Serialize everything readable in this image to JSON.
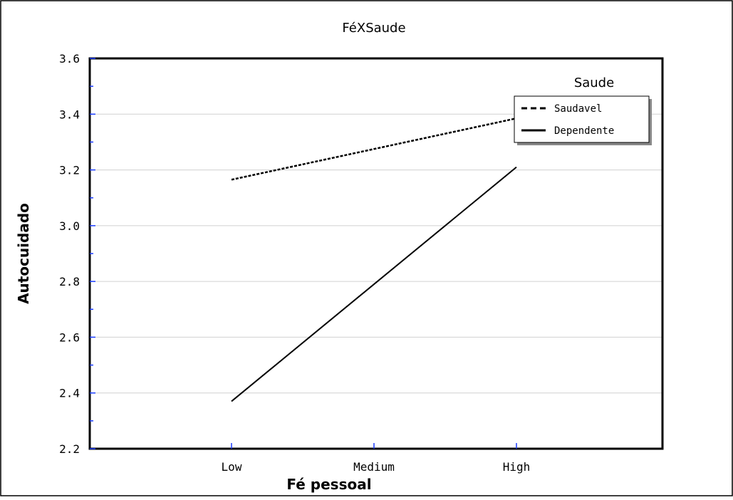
{
  "chart_data": {
    "type": "line",
    "title": "FéXSaude",
    "xlabel": "Fé pessoal",
    "ylabel": "Autocuidado",
    "categories": [
      "Low",
      "Medium",
      "High"
    ],
    "ylim": [
      2.2,
      3.6
    ],
    "yticks": [
      "2.2",
      "2.4",
      "2.6",
      "2.8",
      "3.0",
      "3.2",
      "3.4",
      "3.6"
    ],
    "grid": "horizontal",
    "legend": {
      "title": "Saude",
      "placement": "top-right"
    },
    "series": [
      {
        "name": "Saudavel",
        "line_style": "dashed",
        "color": "#000000",
        "values": [
          3.165,
          3.275,
          3.385
        ]
      },
      {
        "name": "Dependente",
        "line_style": "solid",
        "color": "#000000",
        "values": [
          2.37,
          2.79,
          3.21
        ]
      }
    ]
  }
}
